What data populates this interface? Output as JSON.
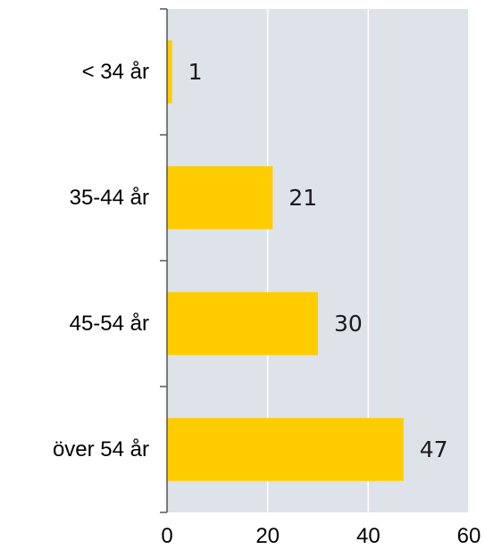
{
  "chart_data": {
    "type": "bar",
    "orientation": "horizontal",
    "title": "",
    "xlabel": "",
    "ylabel": "",
    "categories": [
      "< 34 år",
      "35-44 år",
      "45-54 år",
      "över 54 år"
    ],
    "values": [
      1,
      21,
      30,
      47
    ],
    "data_labels": [
      "1",
      "21",
      "30",
      "47"
    ],
    "xlim": [
      0,
      60
    ],
    "x_ticks": [
      0,
      20,
      40,
      60
    ],
    "x_tick_labels": [
      "0",
      "20",
      "40",
      "60"
    ],
    "grid": true,
    "legend": "none",
    "colors": {
      "bar": "#FFCC00",
      "plot_background": "#DDE3E8",
      "gridline": "#FFFFFF",
      "axis": "#555555"
    }
  }
}
